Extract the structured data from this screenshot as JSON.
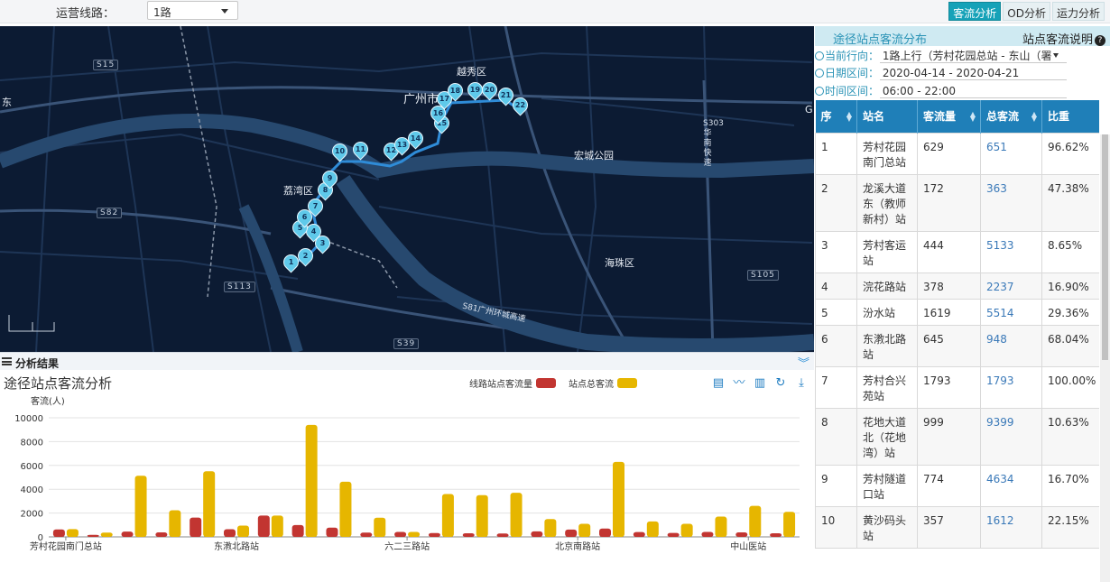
{
  "topbar": {
    "route_label": "运营线路：",
    "route_value": "1路",
    "tabs": [
      {
        "label": "客流分析",
        "active": true
      },
      {
        "label": "OD分析",
        "active": false
      },
      {
        "label": "运力分析",
        "active": false
      }
    ]
  },
  "map": {
    "districts": [
      {
        "name": "越秀区"
      },
      {
        "name": "广州市"
      },
      {
        "name": "荔湾区"
      },
      {
        "name": "海珠区"
      },
      {
        "name": "宏城公园"
      },
      {
        "name": "东"
      },
      {
        "name": "G"
      }
    ],
    "road_tags": [
      "S15",
      "S82",
      "S113",
      "S39",
      "S105"
    ],
    "vertical_road": "S303华南快速",
    "ring_road": "S81广州环城高速",
    "stop_markers": [
      "1",
      "2",
      "3",
      "4",
      "5",
      "6",
      "7",
      "8",
      "9",
      "10",
      "11",
      "12",
      "13",
      "14",
      "15",
      "16",
      "17",
      "18",
      "19",
      "20",
      "21",
      "22"
    ]
  },
  "panel": {
    "title": "途径站点客流分布",
    "help": "站点客流说明",
    "direction_label": "当前行向：",
    "direction_value": "1路上行（芳村花园总站 - 东山（署",
    "date_label": "日期区间：",
    "date_value": "2020-04-14 - 2020-04-21",
    "time_label": "时间区间：",
    "time_value": "06:00 - 22:00",
    "columns": [
      "序",
      "站名",
      "客流量",
      "总客流",
      "比重"
    ],
    "rows": [
      {
        "idx": "1",
        "name": "芳村花园南门总站",
        "flow": "629",
        "total": "651",
        "ratio": "96.62%"
      },
      {
        "idx": "2",
        "name": "龙溪大道东（教师新村）站",
        "flow": "172",
        "total": "363",
        "ratio": "47.38%"
      },
      {
        "idx": "3",
        "name": "芳村客运站",
        "flow": "444",
        "total": "5133",
        "ratio": "8.65%"
      },
      {
        "idx": "4",
        "name": "浣花路站",
        "flow": "378",
        "total": "2237",
        "ratio": "16.90%"
      },
      {
        "idx": "5",
        "name": "汾水站",
        "flow": "1619",
        "total": "5514",
        "ratio": "29.36%"
      },
      {
        "idx": "6",
        "name": "东漖北路站",
        "flow": "645",
        "total": "948",
        "ratio": "68.04%"
      },
      {
        "idx": "7",
        "name": "芳村合兴苑站",
        "flow": "1793",
        "total": "1793",
        "ratio": "100.00%"
      },
      {
        "idx": "8",
        "name": "花地大道北（花地湾）站",
        "flow": "999",
        "total": "9399",
        "ratio": "10.63%"
      },
      {
        "idx": "9",
        "name": "芳村隧道口站",
        "flow": "774",
        "total": "4634",
        "ratio": "16.70%"
      },
      {
        "idx": "10",
        "name": "黄沙码头站",
        "flow": "357",
        "total": "1612",
        "ratio": "22.15%"
      }
    ]
  },
  "analysis": {
    "bar_title": "分析结果",
    "chart_title": "途径站点客流分析"
  },
  "chart_data": {
    "type": "bar",
    "ylabel": "客流(人)",
    "ylim": [
      0,
      10000
    ],
    "yticks": [
      0,
      2000,
      4000,
      6000,
      8000,
      10000
    ],
    "legend_placement": "top-right",
    "colors": {
      "line_flow": "#c23531",
      "total_flow": "#e6b600"
    },
    "category_labels": [
      "芳村花园南门总站",
      "东漖北路站",
      "六二三路站",
      "北京南路站",
      "中山医站"
    ],
    "series": [
      {
        "name": "线路站点客流量",
        "color": "#c23531",
        "values": [
          629,
          172,
          444,
          378,
          1619,
          645,
          1793,
          999,
          774,
          357,
          420,
          320,
          300,
          280,
          460,
          620,
          700,
          410,
          330,
          420,
          380,
          300
        ]
      },
      {
        "name": "站点总客流",
        "color": "#e6b600",
        "values": [
          651,
          363,
          5133,
          2237,
          5514,
          948,
          1793,
          9399,
          4634,
          1612,
          420,
          3600,
          3500,
          3700,
          1500,
          1100,
          6300,
          1300,
          1100,
          1700,
          2600,
          2100
        ]
      }
    ]
  }
}
